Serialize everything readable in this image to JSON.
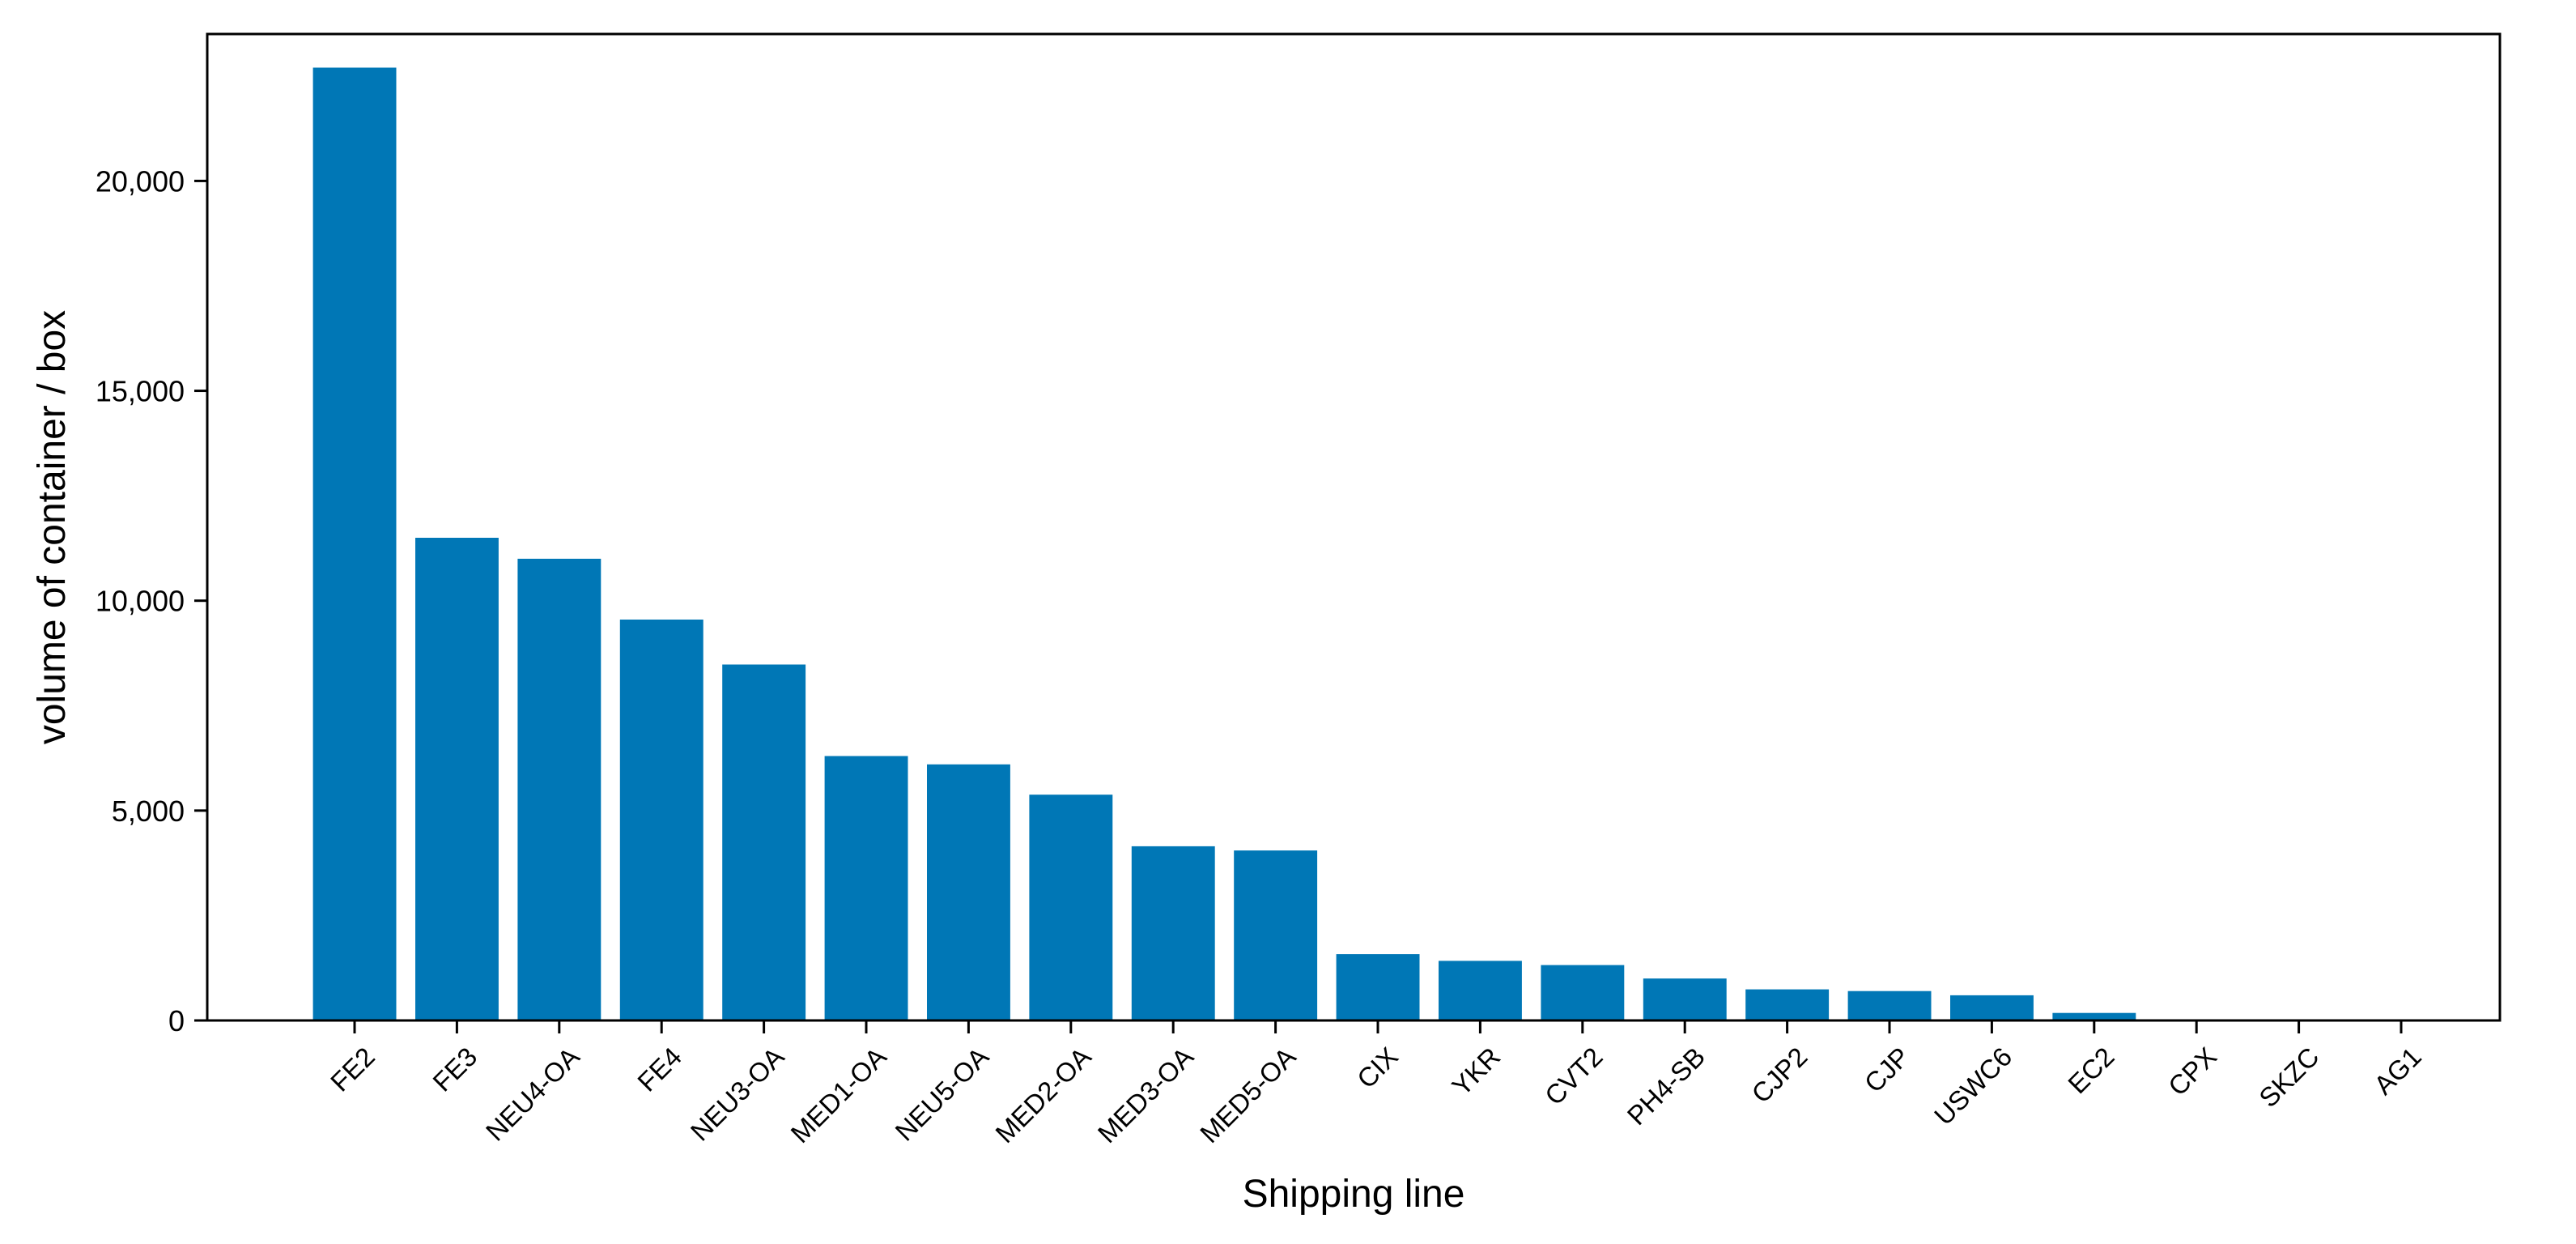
{
  "chart_data": {
    "type": "bar",
    "title": "",
    "xlabel": "Shipping line",
    "ylabel": "volume of container / box",
    "ylim": [
      0,
      23500
    ],
    "yticks": [
      0,
      5000,
      10000,
      15000,
      20000
    ],
    "ytick_labels": [
      "0",
      "5,000",
      "10,000",
      "15,000",
      "20,000"
    ],
    "grid": false,
    "legend": "none",
    "bar_color": "#0077b6",
    "categories": [
      "FE2",
      "FE3",
      "NEU4-OA",
      "FE4",
      "NEU3-OA",
      "MED1-OA",
      "NEU5-OA",
      "MED2-OA",
      "MED3-OA",
      "MED5-OA",
      "CIX",
      "YKR",
      "CVT2",
      "PH4-SB",
      "CJP2",
      "CJP",
      "USWC6",
      "EC2",
      "CPX",
      "SKZC",
      "AG1"
    ],
    "values": [
      22700,
      11500,
      11000,
      9550,
      8480,
      6300,
      6100,
      5380,
      4150,
      4050,
      1580,
      1420,
      1320,
      1000,
      740,
      700,
      600,
      180,
      0,
      0,
      0
    ]
  }
}
